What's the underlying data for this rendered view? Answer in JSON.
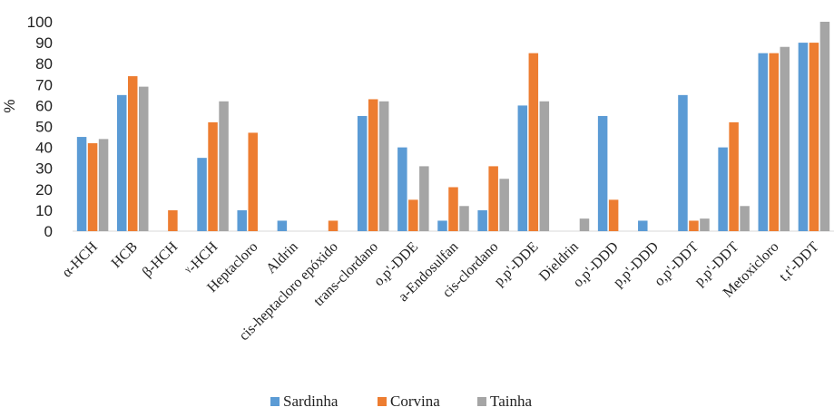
{
  "chart_data": {
    "type": "bar",
    "ylabel": "%",
    "ylim": [
      0,
      100
    ],
    "yticks": [
      0,
      10,
      20,
      30,
      40,
      50,
      60,
      70,
      80,
      90,
      100
    ],
    "grid": false,
    "legend_position": "bottom",
    "categories": [
      "α-HCH",
      "HCB",
      "β-HCH",
      "ᵞ-HCH",
      "Heptacloro",
      "Aldrin",
      "cis-heptacloro epóxido",
      "trans-clordano",
      "o,p'-DDE",
      "a-Endosulfan",
      "cis-clordano",
      "p,p'-DDE",
      "Dieldrin",
      "o,p'-DDD",
      "p,p'-DDD",
      "o,p'-DDT",
      "p,p'-DDT",
      "Metoxicloro",
      "t,t'-DDT"
    ],
    "series": [
      {
        "name": "Sardinha",
        "color": "#5b9bd5",
        "values": [
          45,
          65,
          0,
          35,
          10,
          5,
          0,
          55,
          40,
          5,
          10,
          60,
          0,
          55,
          5,
          65,
          40,
          85,
          90
        ]
      },
      {
        "name": "Corvina",
        "color": "#ed7d31",
        "values": [
          42,
          74,
          10,
          52,
          47,
          0,
          5,
          63,
          15,
          21,
          31,
          85,
          0,
          15,
          0,
          5,
          52,
          85,
          90
        ]
      },
      {
        "name": "Tainha",
        "color": "#a5a5a5",
        "values": [
          44,
          69,
          0,
          62,
          0,
          0,
          0,
          62,
          31,
          12,
          25,
          62,
          6,
          0,
          0,
          6,
          12,
          88,
          100
        ]
      }
    ]
  }
}
